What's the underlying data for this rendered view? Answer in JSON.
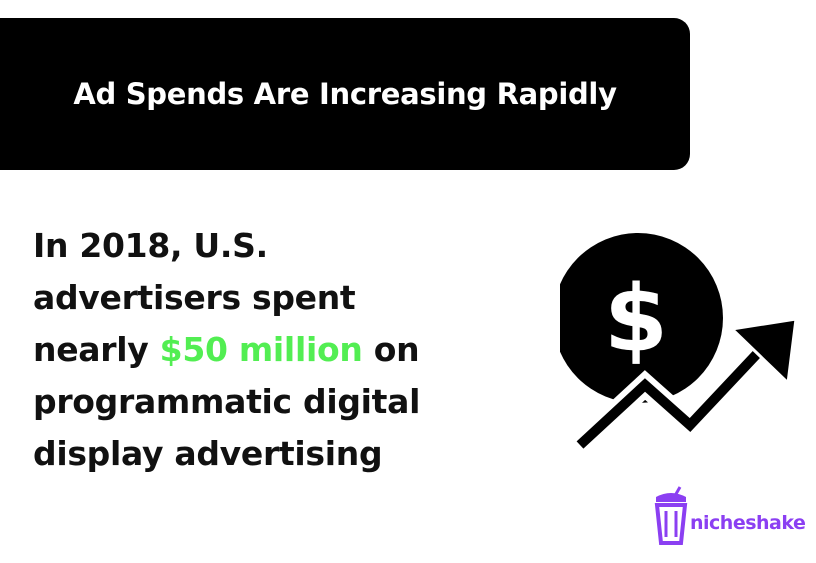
{
  "header": {
    "title": "Ad Spends Are Increasing Rapidly"
  },
  "statement": {
    "lines": [
      "In 2018, U.S.",
      "advertisers spent",
      [
        "nearly",
        "$50 million",
        "on"
      ],
      "programmatic digital",
      "display advertising"
    ]
  },
  "icon": {
    "symbol": "$"
  },
  "brand": {
    "name": "nicheshake"
  }
}
